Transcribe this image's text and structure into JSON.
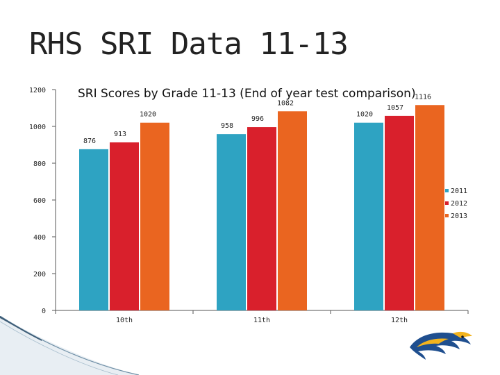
{
  "slide": {
    "title": "RHS SRI Data 11-13"
  },
  "chart_data": {
    "type": "bar",
    "title": "SRI Scores by Grade 11-13 (End of year test comparison)",
    "categories": [
      "10th",
      "11th",
      "12th"
    ],
    "series": [
      {
        "name": "2011",
        "values": [
          876,
          958,
          1020
        ],
        "color": "#2ea3c2"
      },
      {
        "name": "2012",
        "values": [
          913,
          996,
          1057
        ],
        "color": "#d9202c"
      },
      {
        "name": "2013",
        "values": [
          1020,
          1082,
          1116
        ],
        "color": "#ea6520"
      }
    ],
    "ylim": [
      0,
      1200
    ],
    "yticks": [
      0,
      200,
      400,
      600,
      800,
      1000,
      1200
    ],
    "xlabel": "",
    "ylabel": "",
    "grid": false,
    "legend_position": "right"
  }
}
